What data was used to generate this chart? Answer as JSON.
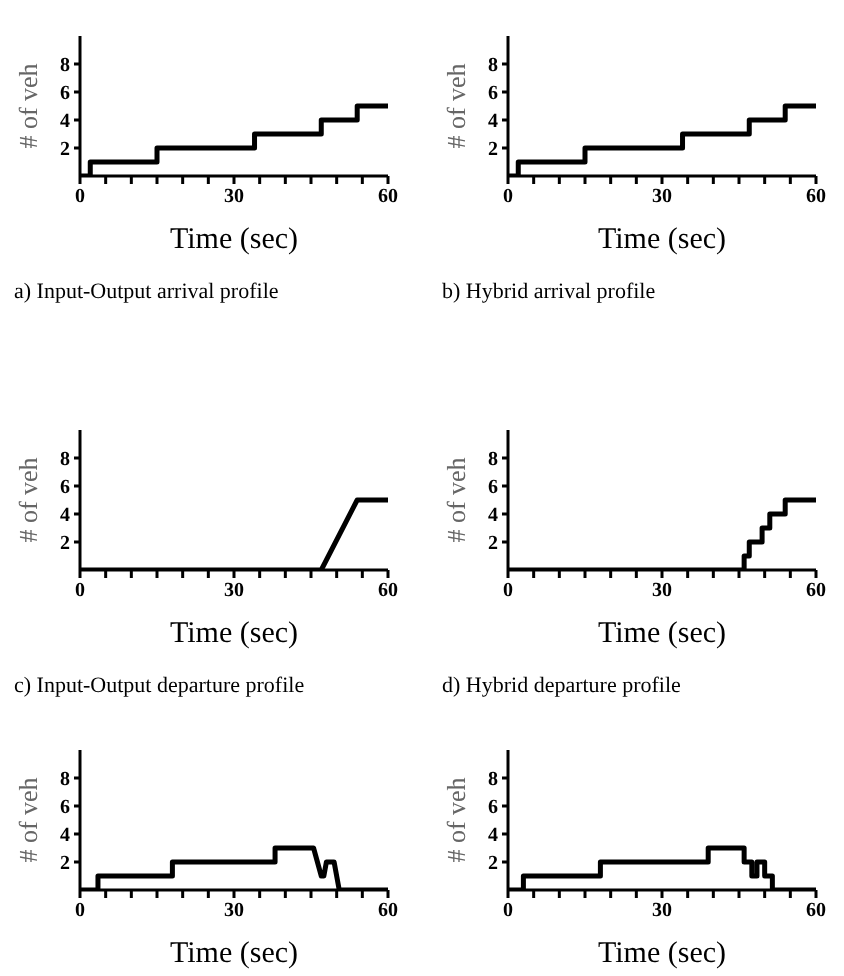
{
  "chart_data": [
    {
      "type": "step",
      "title": "a) Input-Output arrival profile",
      "xlabel": "Time (sec)",
      "ylabel": "# of veh",
      "x": [
        0,
        2,
        15,
        34,
        47,
        54,
        60
      ],
      "values": [
        0,
        1,
        2,
        3,
        4,
        5,
        5
      ],
      "color": "#000000",
      "xlim": [
        0,
        60
      ],
      "ylim": [
        0,
        10
      ],
      "xticks": [
        0,
        {
          "value": 5,
          "label": null
        },
        {
          "value": 10,
          "label": null
        },
        {
          "value": 15,
          "label": null
        },
        {
          "value": 20,
          "label": null
        },
        {
          "value": 25,
          "label": null
        },
        30,
        {
          "value": 35,
          "label": null
        },
        {
          "value": 40,
          "label": null
        },
        {
          "value": 45,
          "label": null
        },
        {
          "value": 50,
          "label": null
        },
        {
          "value": 55,
          "label": null
        },
        60
      ],
      "yticks": [
        2,
        4,
        6,
        8
      ]
    },
    {
      "type": "step",
      "title": "b) Hybrid arrival profile",
      "xlabel": "Time (sec)",
      "ylabel": "# of veh",
      "x": [
        0,
        2,
        15,
        34,
        47,
        54,
        60
      ],
      "values": [
        0,
        1,
        2,
        3,
        4,
        5,
        5
      ],
      "color": "#000000",
      "xlim": [
        0,
        60
      ],
      "ylim": [
        0,
        10
      ],
      "xticks": [
        0,
        {
          "value": 5,
          "label": null
        },
        {
          "value": 10,
          "label": null
        },
        {
          "value": 15,
          "label": null
        },
        {
          "value": 20,
          "label": null
        },
        {
          "value": 25,
          "label": null
        },
        30,
        {
          "value": 35,
          "label": null
        },
        {
          "value": 40,
          "label": null
        },
        {
          "value": 45,
          "label": null
        },
        {
          "value": 50,
          "label": null
        },
        {
          "value": 55,
          "label": null
        },
        60
      ],
      "yticks": [
        2,
        4,
        6,
        8
      ]
    },
    {
      "type": "line",
      "title": "c) Input-Output departure profile",
      "xlabel": "Time (sec)",
      "ylabel": "# of veh",
      "x": [
        0,
        47,
        54,
        60
      ],
      "values": [
        0,
        0,
        5,
        5
      ],
      "color": "#000000",
      "xlim": [
        0,
        60
      ],
      "ylim": [
        0,
        10
      ],
      "xticks": [
        0,
        {
          "value": 5,
          "label": null
        },
        {
          "value": 10,
          "label": null
        },
        {
          "value": 15,
          "label": null
        },
        {
          "value": 20,
          "label": null
        },
        {
          "value": 25,
          "label": null
        },
        30,
        {
          "value": 35,
          "label": null
        },
        {
          "value": 40,
          "label": null
        },
        {
          "value": 45,
          "label": null
        },
        {
          "value": 50,
          "label": null
        },
        {
          "value": 55,
          "label": null
        },
        60
      ],
      "yticks": [
        2,
        4,
        6,
        8
      ]
    },
    {
      "type": "step",
      "title": "d) Hybrid departure profile",
      "xlabel": "Time (sec)",
      "ylabel": "# of veh",
      "x": [
        0,
        46,
        47,
        49.5,
        51,
        54,
        60
      ],
      "values": [
        0,
        1,
        2,
        3,
        4,
        5,
        5
      ],
      "color": "#000000",
      "xlim": [
        0,
        60
      ],
      "ylim": [
        0,
        10
      ],
      "xticks": [
        0,
        {
          "value": 5,
          "label": null
        },
        {
          "value": 10,
          "label": null
        },
        {
          "value": 15,
          "label": null
        },
        {
          "value": 20,
          "label": null
        },
        {
          "value": 25,
          "label": null
        },
        30,
        {
          "value": 35,
          "label": null
        },
        {
          "value": 40,
          "label": null
        },
        {
          "value": 45,
          "label": null
        },
        {
          "value": 50,
          "label": null
        },
        {
          "value": 55,
          "label": null
        },
        60
      ],
      "yticks": [
        2,
        4,
        6,
        8
      ]
    },
    {
      "type": "line",
      "xlabel": "Time (sec)",
      "ylabel": "# of veh",
      "x": [
        0,
        3.5,
        3.5,
        18,
        18,
        38,
        38,
        45.5,
        47,
        47.5,
        48,
        49.5,
        50.5,
        60
      ],
      "values": [
        0,
        0,
        1,
        1,
        2,
        2,
        3,
        3,
        1,
        1,
        2,
        2,
        0,
        0
      ],
      "color": "#000000",
      "xlim": [
        0,
        60
      ],
      "ylim": [
        0,
        10
      ],
      "xticks": [
        0,
        {
          "value": 5,
          "label": null
        },
        {
          "value": 10,
          "label": null
        },
        {
          "value": 15,
          "label": null
        },
        {
          "value": 20,
          "label": null
        },
        {
          "value": 25,
          "label": null
        },
        30,
        {
          "value": 35,
          "label": null
        },
        {
          "value": 40,
          "label": null
        },
        {
          "value": 45,
          "label": null
        },
        {
          "value": 50,
          "label": null
        },
        {
          "value": 55,
          "label": null
        },
        60
      ],
      "yticks": [
        2,
        4,
        6,
        8
      ]
    },
    {
      "type": "step",
      "xlabel": "Time (sec)",
      "ylabel": "# of veh",
      "x": [
        0,
        3,
        18,
        39,
        46,
        47.5,
        48.5,
        50,
        51.5,
        60
      ],
      "values": [
        0,
        1,
        2,
        3,
        2,
        1,
        2,
        1,
        0,
        0
      ],
      "color": "#000000",
      "xlim": [
        0,
        60
      ],
      "ylim": [
        0,
        10
      ],
      "xticks": [
        0,
        {
          "value": 5,
          "label": null
        },
        {
          "value": 10,
          "label": null
        },
        {
          "value": 15,
          "label": null
        },
        {
          "value": 20,
          "label": null
        },
        {
          "value": 25,
          "label": null
        },
        30,
        {
          "value": 35,
          "label": null
        },
        {
          "value": 40,
          "label": null
        },
        {
          "value": 45,
          "label": null
        },
        {
          "value": 50,
          "label": null
        },
        {
          "value": 55,
          "label": null
        },
        60
      ],
      "yticks": [
        2,
        4,
        6,
        8
      ]
    }
  ]
}
